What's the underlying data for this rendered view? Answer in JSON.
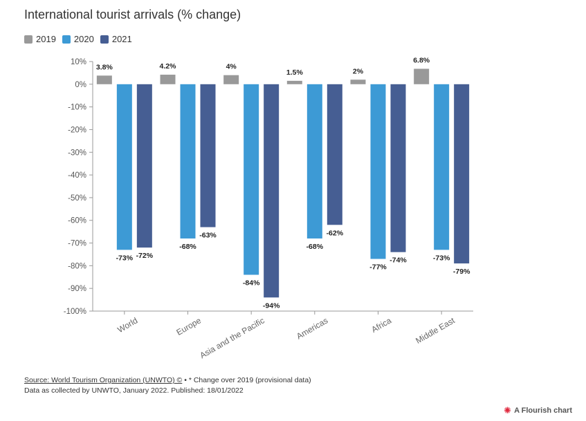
{
  "chart_data": {
    "type": "bar",
    "title": "International tourist arrivals (% change)",
    "categories": [
      "World",
      "Europe",
      "Asia and the Pacific",
      "Americas",
      "Africa",
      "Middle East"
    ],
    "series": [
      {
        "name": "2019",
        "color": "#999999",
        "values": [
          3.8,
          4.2,
          4,
          1.5,
          2,
          6.8
        ],
        "labels": [
          "3.8%",
          "4.2%",
          "4%",
          "1.5%",
          "2%",
          "6.8%"
        ]
      },
      {
        "name": "2020",
        "color": "#3d9ad5",
        "values": [
          -73,
          -68,
          -84,
          -68,
          -77,
          -73
        ],
        "labels": [
          "-73%",
          "-68%",
          "-84%",
          "-68%",
          "-77%",
          "-73%"
        ]
      },
      {
        "name": "2021",
        "color": "#465e93",
        "values": [
          -72,
          -63,
          -94,
          -62,
          -74,
          -79
        ],
        "labels": [
          "-72%",
          "-63%",
          "-94%",
          "-62%",
          "-74%",
          "-79%"
        ]
      }
    ],
    "ylim": [
      -100,
      10
    ],
    "yticks": [
      10,
      0,
      -10,
      -20,
      -30,
      -40,
      -50,
      -60,
      -70,
      -80,
      -90,
      -100
    ],
    "ytick_labels": [
      "10%",
      "0%",
      "-10%",
      "-20%",
      "-30%",
      "-40%",
      "-50%",
      "-60%",
      "-70%",
      "-80%",
      "-90%",
      "-100%"
    ],
    "xlabel": "",
    "ylabel": "",
    "grid": false,
    "legend_position": "top-left"
  },
  "footer": {
    "source_link": "Source: World Tourism Organization (UNWTO) ©",
    "source_note": " • * Change over 2019 (provisional data)",
    "line2": "Data as collected by UNWTO, January 2022. Published: 18/01/2022"
  },
  "branding": {
    "icon": "flourish-logo-icon",
    "label": "A Flourish chart"
  }
}
